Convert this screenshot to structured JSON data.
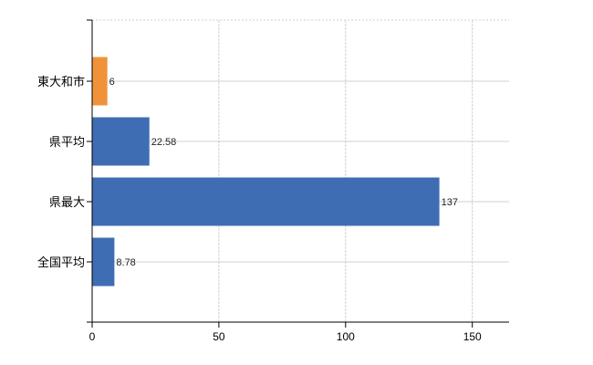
{
  "chart_data": {
    "type": "bar",
    "orientation": "horizontal",
    "title": "",
    "xlabel": "",
    "ylabel": "",
    "categories": [
      "東大和市",
      "県平均",
      "県最大",
      "全国平均"
    ],
    "values": [
      6,
      22.58,
      137,
      8.78
    ],
    "value_labels": [
      "6",
      "22.58",
      "137",
      "8.78"
    ],
    "bar_colors": [
      "#f0923a",
      "#3f6db3",
      "#3f6db3",
      "#3f6db3"
    ],
    "xlim": [
      0,
      164.5
    ],
    "xticks": [
      0,
      50,
      100,
      150
    ],
    "xtick_labels": [
      "0",
      "50",
      "100",
      "150"
    ],
    "grid": true,
    "grid_color": "#d0d0d0",
    "legend": "none"
  }
}
